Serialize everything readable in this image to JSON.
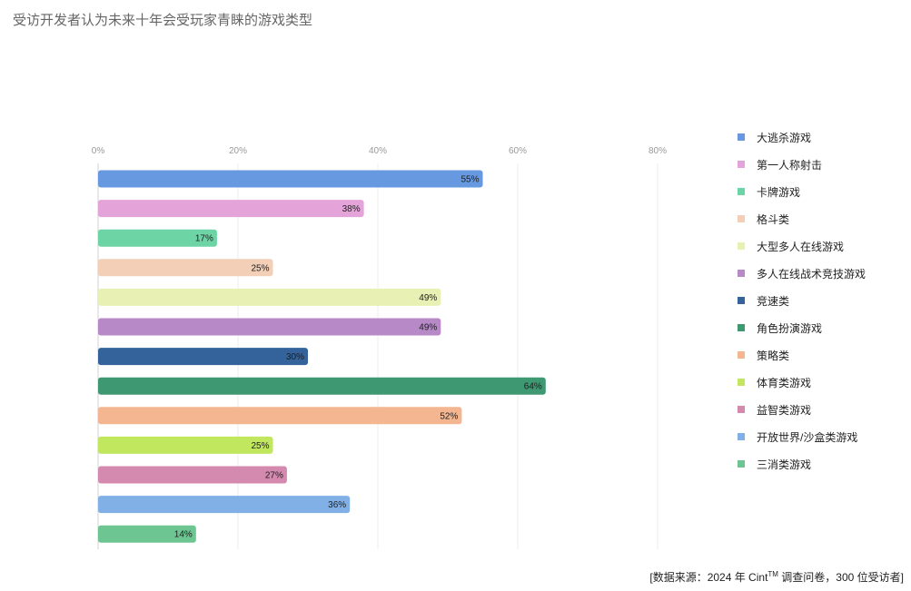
{
  "title": "受访开发者认为未来十年会受玩家青睐的游戏类型",
  "source": {
    "prefix": "[数据来源：2024 年 Cint",
    "tm": "TM",
    "suffix": " 调查问卷，300 位受访者]"
  },
  "chart_data": {
    "type": "bar",
    "orientation": "horizontal",
    "x_ticks": [
      "0%",
      "20%",
      "40%",
      "60%",
      "80%"
    ],
    "xlim": [
      0,
      80
    ],
    "grid": true,
    "legend_position": "right",
    "series": [
      {
        "name": "大逃杀游戏",
        "value": 55,
        "label": "55%",
        "color": "#6699e0"
      },
      {
        "name": "第一人称射击",
        "value": 38,
        "label": "38%",
        "color": "#e4a3d9"
      },
      {
        "name": "卡牌游戏",
        "value": 17,
        "label": "17%",
        "color": "#6dd4a6"
      },
      {
        "name": "格斗类",
        "value": 25,
        "label": "25%",
        "color": "#f2cfb6"
      },
      {
        "name": "大型多人在线游戏",
        "value": 49,
        "label": "49%",
        "color": "#e8f0b4"
      },
      {
        "name": "多人在线战术竞技游戏",
        "value": 49,
        "label": "49%",
        "color": "#b78ac7"
      },
      {
        "name": "竞速类",
        "value": 30,
        "label": "30%",
        "color": "#33639a"
      },
      {
        "name": "角色扮演游戏",
        "value": 64,
        "label": "64%",
        "color": "#3e9872"
      },
      {
        "name": "策略类",
        "value": 52,
        "label": "52%",
        "color": "#f3b690"
      },
      {
        "name": "体育类游戏",
        "value": 25,
        "label": "25%",
        "color": "#c1e75e"
      },
      {
        "name": "益智类游戏",
        "value": 27,
        "label": "27%",
        "color": "#d48aae"
      },
      {
        "name": "开放世界/沙盒类游戏",
        "value": 36,
        "label": "36%",
        "color": "#80b0e6"
      },
      {
        "name": "三消类游戏",
        "value": 14,
        "label": "14%",
        "color": "#6dc592"
      }
    ]
  }
}
